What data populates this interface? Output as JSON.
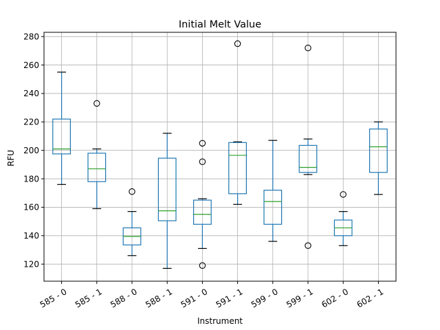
{
  "chart_data": {
    "type": "boxplot",
    "title": "Initial Melt Value",
    "xlabel": "Instrument",
    "ylabel": "RFU",
    "ylim": [
      108,
      283
    ],
    "yticks": [
      120,
      140,
      160,
      180,
      200,
      220,
      240,
      260,
      280
    ],
    "grid": true,
    "colors": {
      "box": "#1f77b4",
      "median": "#2ca02c",
      "grid": "#b0b0b0",
      "axis": "#000000"
    },
    "categories": [
      "585 - 0",
      "585 - 1",
      "588 - 0",
      "588 - 1",
      "591 - 0",
      "591 - 1",
      "599 - 0",
      "599 - 1",
      "602 - 0",
      "602 - 1"
    ],
    "boxes": [
      {
        "whisker_low": 176,
        "q1": 197.5,
        "median": 201,
        "q3": 222,
        "whisker_high": 255,
        "outliers": []
      },
      {
        "whisker_low": 159,
        "q1": 178,
        "median": 187,
        "q3": 198,
        "whisker_high": 201,
        "outliers": [
          233
        ]
      },
      {
        "whisker_low": 126,
        "q1": 133.5,
        "median": 139.5,
        "q3": 145.5,
        "whisker_high": 157,
        "outliers": [
          171
        ]
      },
      {
        "whisker_low": 117,
        "q1": 150.5,
        "median": 157.5,
        "q3": 194.5,
        "whisker_high": 212,
        "outliers": []
      },
      {
        "whisker_low": 131,
        "q1": 148,
        "median": 155,
        "q3": 165,
        "whisker_high": 166,
        "outliers": [
          119,
          192,
          205
        ]
      },
      {
        "whisker_low": 162,
        "q1": 169.5,
        "median": 196.5,
        "q3": 205.5,
        "whisker_high": 206,
        "outliers": [
          275
        ]
      },
      {
        "whisker_low": 136,
        "q1": 148,
        "median": 164,
        "q3": 172,
        "whisker_high": 207,
        "outliers": []
      },
      {
        "whisker_low": 183,
        "q1": 184.5,
        "median": 188,
        "q3": 203.5,
        "whisker_high": 208,
        "outliers": [
          133,
          272
        ]
      },
      {
        "whisker_low": 133,
        "q1": 140,
        "median": 145.5,
        "q3": 151,
        "whisker_high": 157,
        "outliers": [
          169
        ]
      },
      {
        "whisker_low": 169,
        "q1": 184.5,
        "median": 202.5,
        "q3": 215,
        "whisker_high": 220,
        "outliers": []
      }
    ]
  }
}
